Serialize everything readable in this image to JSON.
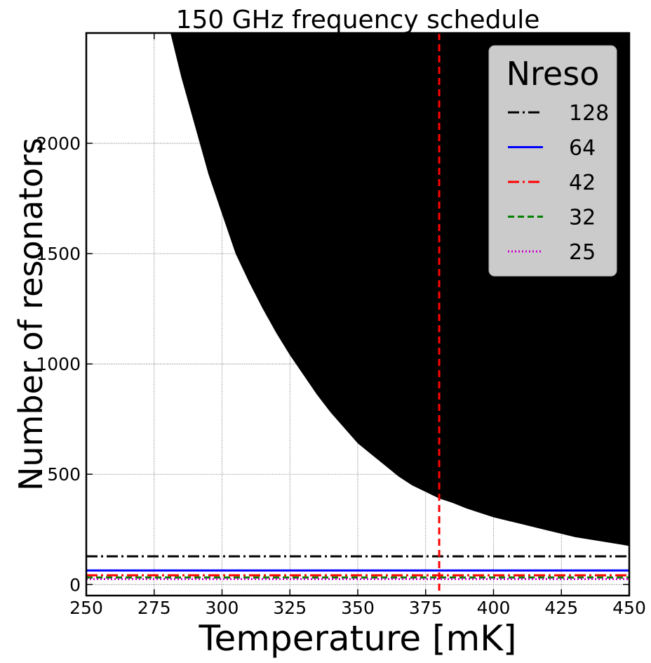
{
  "chart_data": {
    "type": "area",
    "title": "150 GHz frequency schedule",
    "xlabel": "Temperature [mK]",
    "ylabel": "Number of resonators",
    "xlim": [
      250,
      450
    ],
    "ylim": [
      -50,
      2500
    ],
    "xticks": [
      250,
      275,
      300,
      325,
      350,
      375,
      400,
      425,
      450
    ],
    "yticks": [
      0,
      500,
      1000,
      1500,
      2000
    ],
    "grid": true,
    "boundary": {
      "fill_color": "#000000",
      "fill_side": "above",
      "x": [
        281,
        285,
        290,
        295,
        300,
        305,
        310,
        315,
        320,
        325,
        330,
        335,
        340,
        345,
        350,
        355,
        360,
        365,
        370,
        375,
        380,
        385,
        390,
        395,
        400,
        405,
        410,
        415,
        420,
        425,
        430,
        435,
        440,
        445,
        450
      ],
      "y": [
        2500,
        2300,
        2080,
        1860,
        1680,
        1500,
        1370,
        1250,
        1140,
        1040,
        950,
        860,
        780,
        710,
        640,
        590,
        540,
        490,
        450,
        420,
        390,
        370,
        345,
        325,
        305,
        290,
        275,
        260,
        245,
        230,
        215,
        205,
        195,
        185,
        175
      ]
    },
    "vline": {
      "x": 380,
      "color": "#ff0000",
      "style": "dashed"
    },
    "legend": {
      "title": "Nreso",
      "position": "top-right",
      "entries": [
        {
          "label": "128",
          "value": 128,
          "color": "#000000",
          "style": "dashdot"
        },
        {
          "label": "64",
          "value": 64,
          "color": "#0000ff",
          "style": "solid"
        },
        {
          "label": "42",
          "value": 42,
          "color": "#ff0000",
          "style": "dashdot"
        },
        {
          "label": "32",
          "value": 32,
          "color": "#008000",
          "style": "dashed"
        },
        {
          "label": "25",
          "value": 25,
          "color": "#cc00cc",
          "style": "dotted"
        }
      ]
    }
  }
}
